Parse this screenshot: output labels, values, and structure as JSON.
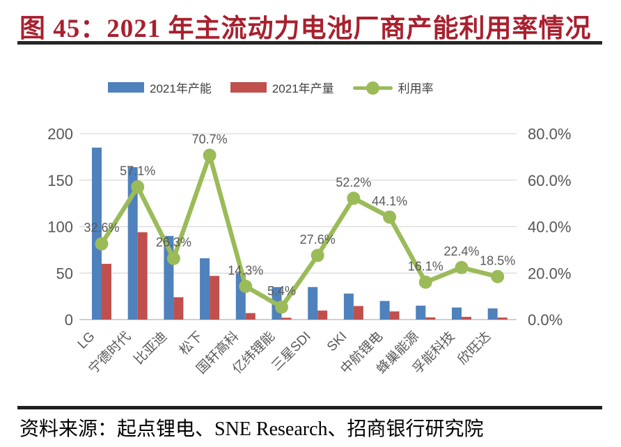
{
  "figure": {
    "title": "图 45：2021 年主流动力电池厂商产能利用率情况",
    "source": "资料来源：起点锂电、SNE Research、招商银行研究院"
  },
  "chart_data": {
    "type": "bar+line",
    "title": "2021年主流动力电池厂商产能利用率情况",
    "categories": [
      "LG",
      "宁德时代",
      "比亚迪",
      "松下",
      "国轩高科",
      "亿纬锂能",
      "三星SDI",
      "SKI",
      "中航锂电",
      "蜂巢能源",
      "孚能科技",
      "欣旺达"
    ],
    "series": [
      {
        "name": "2021年产能",
        "type": "bar",
        "axis": "left",
        "color": "#4F81BD",
        "values": [
          185,
          164,
          90,
          66,
          50,
          35,
          35,
          28,
          20,
          15,
          13,
          12
        ]
      },
      {
        "name": "2021年产量",
        "type": "bar",
        "axis": "left",
        "color": "#C0504D",
        "values": [
          60,
          94,
          24,
          47,
          7,
          2,
          9.7,
          14.6,
          8.8,
          2.4,
          2.9,
          2.2
        ]
      },
      {
        "name": "利用率",
        "type": "line",
        "axis": "right",
        "color": "#9BBB59",
        "values": [
          32.6,
          57.1,
          26.3,
          70.7,
          14.3,
          5.4,
          27.6,
          52.2,
          44.1,
          16.1,
          22.4,
          18.5
        ],
        "labels": [
          "32.6%",
          "57.1%",
          "26.3%",
          "70.7%",
          "14.3%",
          "5.4%",
          "27.6%",
          "52.2%",
          "44.1%",
          "16.1%",
          "22.4%",
          "18.5%"
        ]
      }
    ],
    "left_axis": {
      "ticks": [
        0,
        50,
        100,
        150,
        200
      ],
      "min": 0,
      "max": 200
    },
    "right_axis": {
      "ticks": [
        "0.0%",
        "20.0%",
        "40.0%",
        "60.0%",
        "80.0%"
      ],
      "min": 0,
      "max": 80
    },
    "grid": true,
    "legend_position": "top",
    "colors": {
      "grid": "#d9d9d9",
      "baseline": "#bfbfbf",
      "tick_text": "#565656",
      "label_text": "#595959"
    }
  }
}
